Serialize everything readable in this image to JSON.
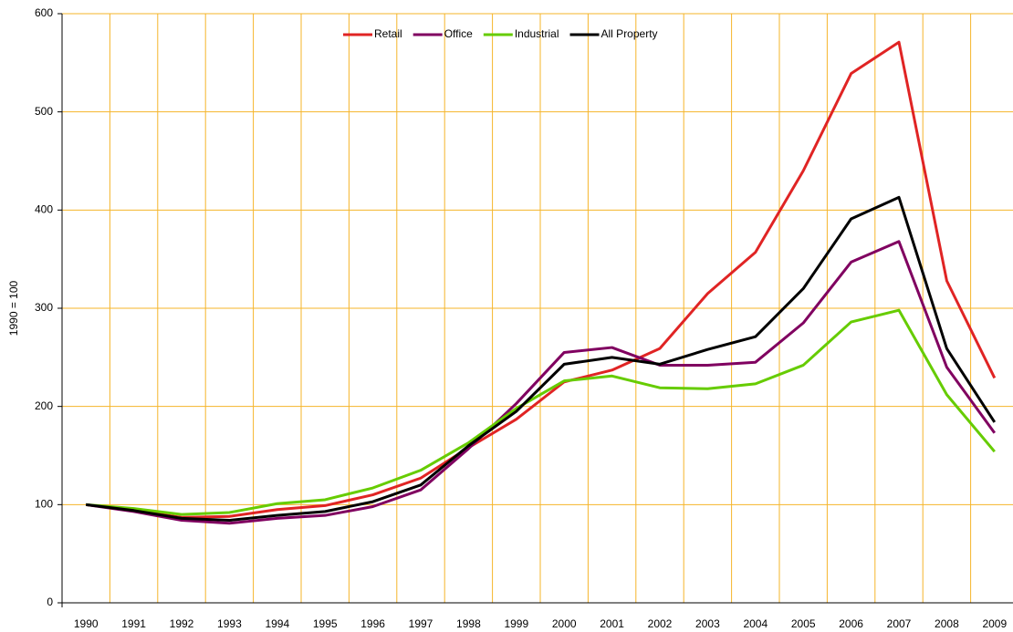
{
  "chart_data": {
    "type": "line",
    "y_label": "1990 = 100",
    "categories": [
      "1990",
      "1991",
      "1992",
      "1993",
      "1994",
      "1995",
      "1996",
      "1997",
      "1998",
      "1999",
      "2000",
      "2001",
      "2002",
      "2003",
      "2004",
      "2005",
      "2006",
      "2007",
      "2008",
      "2009"
    ],
    "series": [
      {
        "name": "Retail",
        "color": "#e02424",
        "values": [
          100,
          94,
          87,
          88,
          95,
          99,
          110,
          127,
          158,
          187,
          225,
          237,
          259,
          315,
          357,
          440,
          539,
          571,
          328,
          229
        ]
      },
      {
        "name": "Office",
        "color": "#800060",
        "values": [
          100,
          93,
          84,
          81,
          86,
          89,
          98,
          115,
          157,
          203,
          255,
          260,
          242,
          242,
          245,
          285,
          347,
          368,
          240,
          173
        ]
      },
      {
        "name": "Industrial",
        "color": "#66cc00",
        "values": [
          100,
          96,
          90,
          92,
          101,
          105,
          117,
          135,
          163,
          198,
          226,
          231,
          219,
          218,
          223,
          242,
          286,
          298,
          212,
          154
        ]
      },
      {
        "name": "All Property",
        "color": "#000000",
        "values": [
          100,
          94,
          86,
          84,
          89,
          93,
          103,
          120,
          160,
          195,
          243,
          250,
          243,
          258,
          271,
          320,
          391,
          413,
          259,
          184
        ]
      }
    ],
    "ylim": [
      0,
      600
    ],
    "yticks": [
      0,
      100,
      200,
      300,
      400,
      500,
      600
    ],
    "grid": true,
    "grid_color": "#f5b52a",
    "legend": "top"
  }
}
